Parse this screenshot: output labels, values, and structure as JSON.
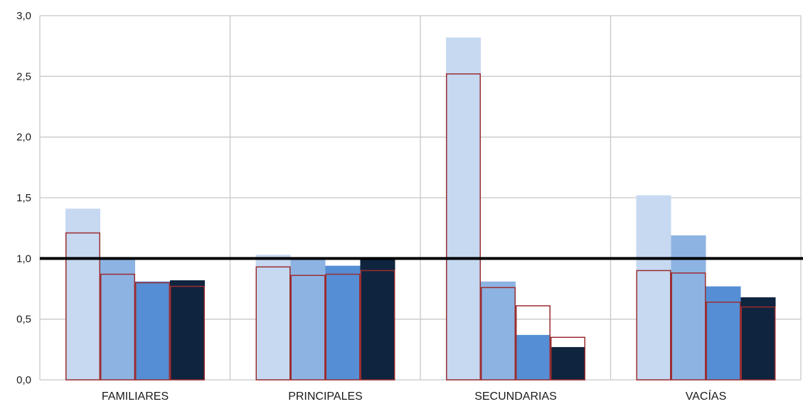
{
  "chart_data": {
    "type": "bar",
    "categories": [
      "FAMILIARES",
      "PRINCIPALES",
      "SECUNDARIAS",
      "VACÍAS"
    ],
    "ylim": [
      0,
      3.0
    ],
    "yticks": [
      "0,0",
      "0,5",
      "1,0",
      "1,5",
      "2,0",
      "2,5",
      "3,0"
    ],
    "ytick_values": [
      0,
      0.5,
      1.0,
      1.5,
      2.0,
      2.5,
      3.0
    ],
    "reference_line": 1.0,
    "grid": "horizontal and category separators",
    "series": [
      {
        "values": [
          1.41,
          1.03,
          2.82,
          1.52
        ],
        "color": "#c6d9f1"
      },
      {
        "values": [
          1.0,
          1.0,
          0.81,
          1.19
        ],
        "color": "#8db3e2"
      },
      {
        "values": [
          0.81,
          0.94,
          0.37,
          0.77
        ],
        "color": "#558ed5"
      },
      {
        "values": [
          0.82,
          1.0,
          0.27,
          0.68
        ],
        "color": "#0f243e"
      }
    ],
    "outline_series": [
      {
        "values": [
          1.21,
          0.93,
          2.52,
          0.9
        ],
        "color": "#9b2d30"
      },
      {
        "values": [
          0.87,
          0.86,
          0.76,
          0.88
        ],
        "color": "#9b2d30"
      },
      {
        "values": [
          0.8,
          0.87,
          0.61,
          0.64
        ],
        "color": "#9b2d30"
      },
      {
        "values": [
          0.77,
          0.9,
          0.35,
          0.6
        ],
        "color": "#9b2d30"
      }
    ]
  }
}
